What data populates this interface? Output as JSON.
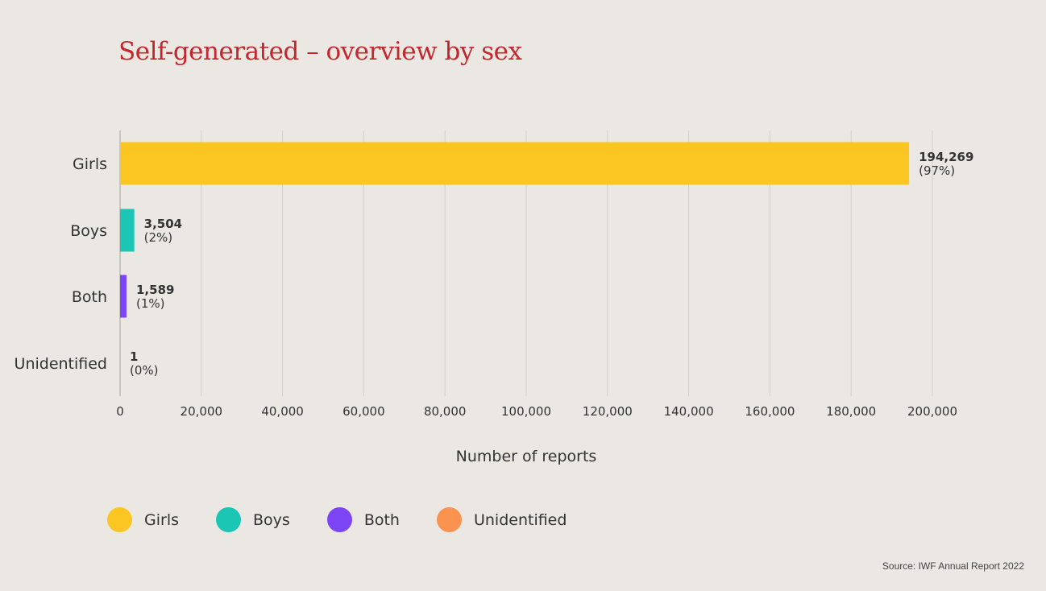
{
  "chart_data": {
    "type": "bar",
    "orientation": "horizontal",
    "title": "Self-generated – overview by sex",
    "categories": [
      "Girls",
      "Boys",
      "Both",
      "Unidentified"
    ],
    "values": [
      194269,
      3504,
      1589,
      1
    ],
    "value_labels": [
      "194,269",
      "3,504",
      "1,589",
      "1"
    ],
    "percent_labels": [
      "(97%)",
      "(2%)",
      "(1%)",
      "(0%)"
    ],
    "colors": [
      "#fcc622",
      "#1cc6b4",
      "#7c45f6",
      "#fa9350"
    ],
    "xlabel": "Number of reports",
    "ylabel": "",
    "xlim": [
      0,
      200000
    ],
    "xticks": [
      0,
      20000,
      40000,
      60000,
      80000,
      100000,
      120000,
      140000,
      160000,
      180000,
      200000
    ],
    "xtick_labels": [
      "0",
      "20,000",
      "40,000",
      "60,000",
      "80,000",
      "100,000",
      "120,000",
      "140,000",
      "160,000",
      "180,000",
      "200,000"
    ],
    "grid": true,
    "legend_position": "bottom-left"
  },
  "legend": [
    {
      "label": "Girls",
      "color": "#fcc622"
    },
    {
      "label": "Boys",
      "color": "#1cc6b4"
    },
    {
      "label": "Both",
      "color": "#7c45f6"
    },
    {
      "label": "Unidentified",
      "color": "#fa9350"
    }
  ],
  "source": "Source: IWF Annual Report 2022"
}
